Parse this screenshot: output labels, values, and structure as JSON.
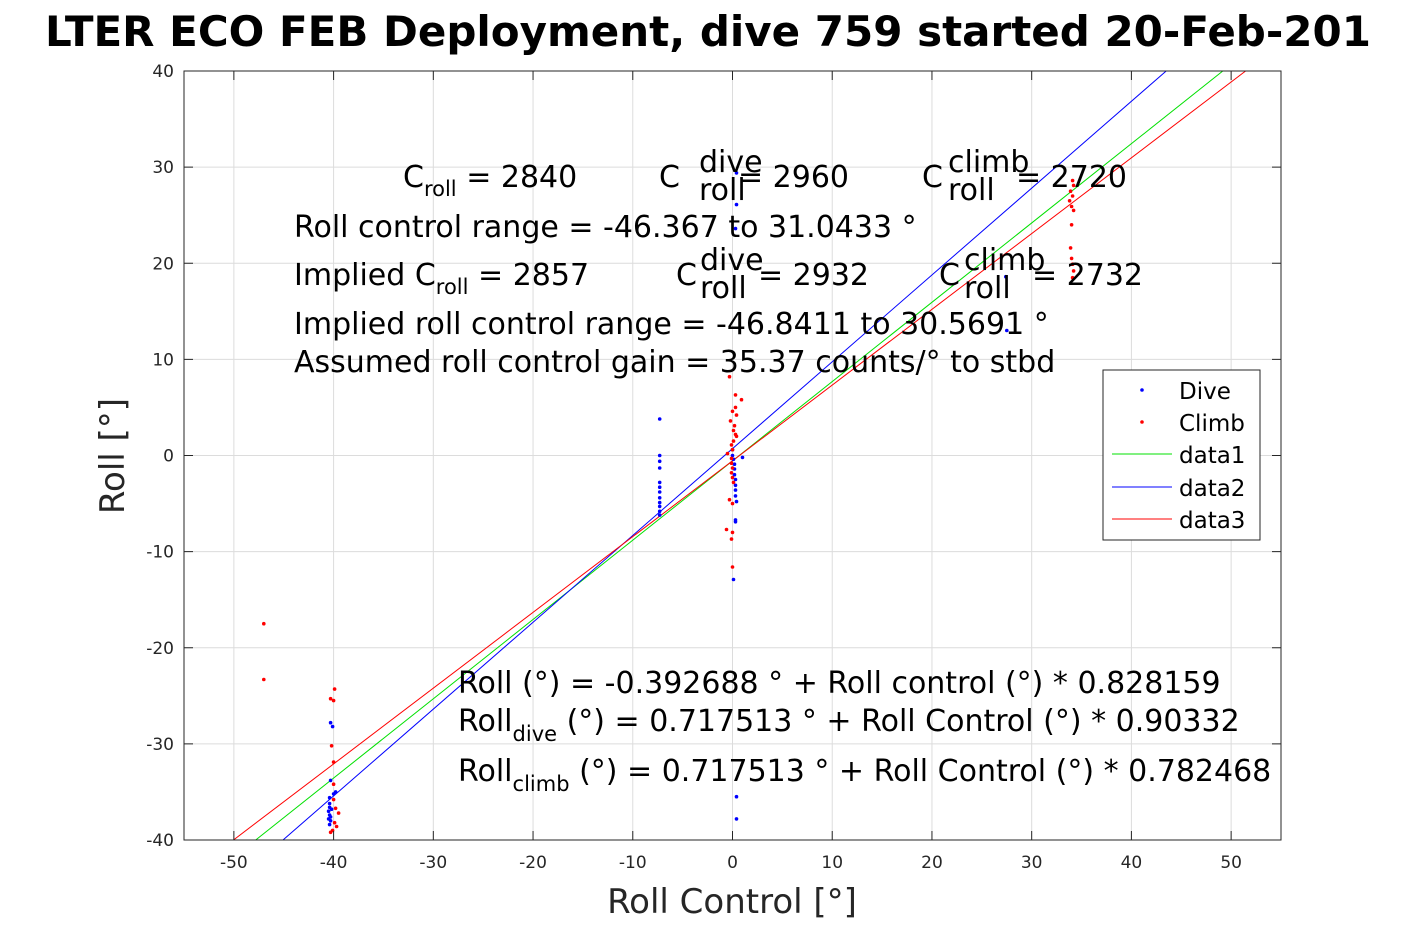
{
  "chart_data": {
    "type": "scatter",
    "title": "LTER ECO FEB Deployment, dive 759 started 20-Feb-201",
    "xlabel": "Roll Control [°]",
    "ylabel": "Roll [°]",
    "xlim": [
      -55,
      55
    ],
    "ylim": [
      -40,
      40
    ],
    "xticks": [
      "-50",
      "-40",
      "-30",
      "-20",
      "-10",
      "0",
      "10",
      "20",
      "30",
      "40",
      "50"
    ],
    "yticks": [
      "-40",
      "-30",
      "-20",
      "-10",
      "0",
      "10",
      "20",
      "30",
      "40"
    ],
    "grid": true,
    "legend_placement": "right",
    "annotations": {
      "line1": {
        "a_main": "C",
        "a_sub": "roll",
        "a_val": " = 2840",
        "b_main": "C",
        "b_sup": "dive",
        "b_sub": "roll",
        "b_val": " = 2960",
        "c_main": "C",
        "c_sup": "climb",
        "c_sub": "roll",
        "c_val": " = 2720"
      },
      "line2": "Roll control range = -46.367 to 31.0433 °",
      "line3": {
        "a_pre": "Implied C",
        "a_sub": "roll",
        "a_val": " = 2857",
        "b_main": "C",
        "b_sup": "dive",
        "b_sub": "roll",
        "b_val": " = 2932",
        "c_main": "C",
        "c_sup": "climb",
        "c_sub": "roll",
        "c_val": " = 2732"
      },
      "line4": "Implied roll control range = -46.8411 to 30.5691 °",
      "line5": "Assumed roll control gain = 35.37 counts/° to stbd",
      "fit1": "Roll (°) = -0.392688 ° + Roll control (°) * 0.828159",
      "fit2": {
        "pre": "Roll",
        "sub": "dive",
        "post": " (°) = 0.717513 ° + Roll Control (°) * 0.90332"
      },
      "fit3": {
        "pre": "Roll",
        "sub": "climb",
        "post": " (°) = 0.717513 ° + Roll Control (°) * 0.782468"
      }
    },
    "series": [
      {
        "name": "Dive",
        "kind": "points",
        "color": "#0000ff",
        "points": [
          [
            -40.3,
            -27.8
          ],
          [
            -40.1,
            -28.2
          ],
          [
            -40.3,
            -33.8
          ],
          [
            -40.4,
            -35.6
          ],
          [
            -40.4,
            -36.2
          ],
          [
            -40.4,
            -36.6
          ],
          [
            -40.5,
            -37.0
          ],
          [
            -40.4,
            -37.4
          ],
          [
            -40.5,
            -37.8
          ],
          [
            -40.3,
            -38.0
          ],
          [
            -40.4,
            -38.4
          ],
          [
            -40.2,
            -36.8
          ],
          [
            -40.0,
            -35.2
          ],
          [
            -39.8,
            -35.0
          ],
          [
            -40.3,
            -37.6
          ],
          [
            -7.3,
            3.8
          ],
          [
            -7.3,
            0.0
          ],
          [
            -7.3,
            -0.6
          ],
          [
            -7.3,
            -1.3
          ],
          [
            -7.3,
            -2.8
          ],
          [
            -7.3,
            -3.3
          ],
          [
            -7.3,
            -3.8
          ],
          [
            -7.3,
            -4.4
          ],
          [
            -7.3,
            -4.9
          ],
          [
            -7.3,
            -5.3
          ],
          [
            -7.3,
            -5.8
          ],
          [
            -7.3,
            -6.2
          ],
          [
            0.4,
            29.4
          ],
          [
            0.4,
            26.1
          ],
          [
            0.3,
            23.6
          ],
          [
            0.0,
            0.6
          ],
          [
            0.0,
            0.0
          ],
          [
            0.1,
            -0.4
          ],
          [
            0.2,
            -0.9
          ],
          [
            0.2,
            -1.4
          ],
          [
            0.2,
            -2.0
          ],
          [
            0.3,
            -2.5
          ],
          [
            0.3,
            -3.1
          ],
          [
            0.3,
            -3.6
          ],
          [
            0.3,
            -4.2
          ],
          [
            0.4,
            -4.8
          ],
          [
            0.3,
            -6.7
          ],
          [
            0.3,
            -6.9
          ],
          [
            0.1,
            -12.9
          ],
          [
            0.4,
            -35.5
          ],
          [
            0.4,
            -37.8
          ],
          [
            1.0,
            -0.2
          ],
          [
            27.4,
            18.6
          ],
          [
            27.5,
            13.0
          ]
        ]
      },
      {
        "name": "Climb",
        "kind": "points",
        "color": "#ff0000",
        "points": [
          [
            -47.0,
            -17.5
          ],
          [
            -47.0,
            -23.3
          ],
          [
            -39.9,
            -24.3
          ],
          [
            -40.3,
            -25.3
          ],
          [
            -40.0,
            -25.5
          ],
          [
            -40.2,
            -30.2
          ],
          [
            -40.0,
            -31.9
          ],
          [
            -40.0,
            -34.2
          ],
          [
            -40.0,
            -35.8
          ],
          [
            -39.8,
            -36.7
          ],
          [
            -39.5,
            -37.2
          ],
          [
            -39.9,
            -38.2
          ],
          [
            -39.7,
            -38.6
          ],
          [
            -40.1,
            -39.0
          ],
          [
            -40.3,
            -39.2
          ],
          [
            -0.3,
            8.2
          ],
          [
            0.3,
            6.3
          ],
          [
            0.9,
            5.8
          ],
          [
            0.3,
            5.0
          ],
          [
            0.0,
            4.6
          ],
          [
            0.4,
            4.2
          ],
          [
            -0.2,
            3.6
          ],
          [
            0.2,
            3.1
          ],
          [
            0.1,
            2.6
          ],
          [
            0.3,
            2.2
          ],
          [
            0.4,
            2.0
          ],
          [
            0.1,
            1.5
          ],
          [
            -0.1,
            1.1
          ],
          [
            0.0,
            0.6
          ],
          [
            -0.5,
            0.2
          ],
          [
            -0.1,
            -0.3
          ],
          [
            -0.1,
            -0.8
          ],
          [
            0.0,
            -1.3
          ],
          [
            -0.1,
            -1.8
          ],
          [
            0.0,
            -2.3
          ],
          [
            0.1,
            -2.8
          ],
          [
            -0.3,
            -4.6
          ],
          [
            0.0,
            -5.0
          ],
          [
            -0.6,
            -7.7
          ],
          [
            0.0,
            -8.0
          ],
          [
            -0.1,
            -8.7
          ],
          [
            0.0,
            -11.6
          ],
          [
            34.1,
            28.6
          ],
          [
            34.2,
            28.1
          ],
          [
            33.9,
            27.5
          ],
          [
            34.1,
            27.0
          ],
          [
            33.8,
            26.5
          ],
          [
            34.0,
            25.9
          ],
          [
            34.2,
            25.5
          ],
          [
            34.0,
            24.0
          ],
          [
            33.9,
            21.6
          ],
          [
            34.0,
            20.5
          ],
          [
            34.1,
            19.9
          ],
          [
            34.2,
            19.2
          ],
          [
            34.1,
            18.5
          ]
        ]
      },
      {
        "name": "data1",
        "kind": "line",
        "color": "#00e000",
        "points": [
          [
            -47.81,
            -40
          ],
          [
            49.16,
            40
          ]
        ]
      },
      {
        "name": "data2",
        "kind": "line",
        "color": "#0000ff",
        "points": [
          [
            -45.07,
            -40
          ],
          [
            43.49,
            40
          ]
        ]
      },
      {
        "name": "data3",
        "kind": "line",
        "color": "#ff0000",
        "points": [
          [
            -50.04,
            -40
          ],
          [
            51.45,
            40
          ]
        ]
      }
    ]
  }
}
